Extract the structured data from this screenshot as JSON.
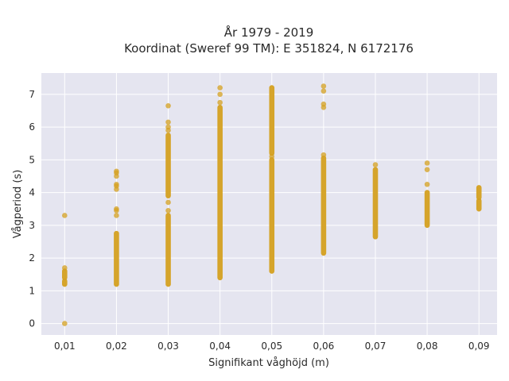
{
  "chart_data": {
    "type": "scatter",
    "title": [
      "År 1979 - 2019",
      "Koordinat (Sweref 99 TM): E 351824, N 6172176"
    ],
    "xlabel": "Signifikant våghöjd (m)",
    "ylabel": "Vågperiod (s)",
    "x_ticks": [
      "0,01",
      "0,02",
      "0,03",
      "0,04",
      "0,05",
      "0,06",
      "0,07",
      "0,08",
      "0,09"
    ],
    "x_tick_values": [
      0.01,
      0.02,
      0.03,
      0.04,
      0.05,
      0.06,
      0.07,
      0.08,
      0.09
    ],
    "y_ticks": [
      "0",
      "1",
      "2",
      "3",
      "4",
      "5",
      "6",
      "7"
    ],
    "y_tick_values": [
      0,
      1,
      2,
      3,
      4,
      5,
      6,
      7
    ],
    "xlim": [
      0.0055,
      0.0935
    ],
    "ylim": [
      -0.35,
      7.65
    ],
    "grid": true,
    "background": "#e5e5f0",
    "marker_color": "#d4a020",
    "columns": [
      {
        "x": 0.01,
        "ranges": [
          [
            1.2,
            1.3
          ],
          [
            1.4,
            1.6
          ]
        ],
        "points": [
          3.3,
          1.7,
          0.0
        ]
      },
      {
        "x": 0.02,
        "ranges": [
          [
            1.2,
            2.75
          ]
        ],
        "points": [
          3.3,
          3.45,
          3.5,
          4.1,
          4.2,
          4.25,
          4.5,
          4.6,
          4.65
        ]
      },
      {
        "x": 0.03,
        "ranges": [
          [
            1.2,
            3.3
          ],
          [
            3.9,
            5.75
          ]
        ],
        "points": [
          3.45,
          3.7,
          5.9,
          6.0,
          6.15,
          6.65
        ]
      },
      {
        "x": 0.04,
        "ranges": [
          [
            1.4,
            6.6
          ]
        ],
        "points": [
          6.75,
          7.0,
          7.2
        ]
      },
      {
        "x": 0.05,
        "ranges": [
          [
            1.6,
            5.0
          ],
          [
            5.2,
            7.2
          ]
        ],
        "points": [
          5.1
        ]
      },
      {
        "x": 0.06,
        "ranges": [
          [
            2.15,
            5.05
          ]
        ],
        "points": [
          5.15,
          6.6,
          6.7,
          7.1,
          7.25
        ]
      },
      {
        "x": 0.07,
        "ranges": [
          [
            2.65,
            4.7
          ]
        ],
        "points": [
          4.85
        ]
      },
      {
        "x": 0.08,
        "ranges": [
          [
            3.0,
            4.0
          ]
        ],
        "points": [
          4.25,
          4.7,
          4.9
        ]
      },
      {
        "x": 0.09,
        "ranges": [
          [
            3.5,
            3.75
          ],
          [
            3.85,
            4.15
          ]
        ],
        "points": []
      }
    ]
  }
}
